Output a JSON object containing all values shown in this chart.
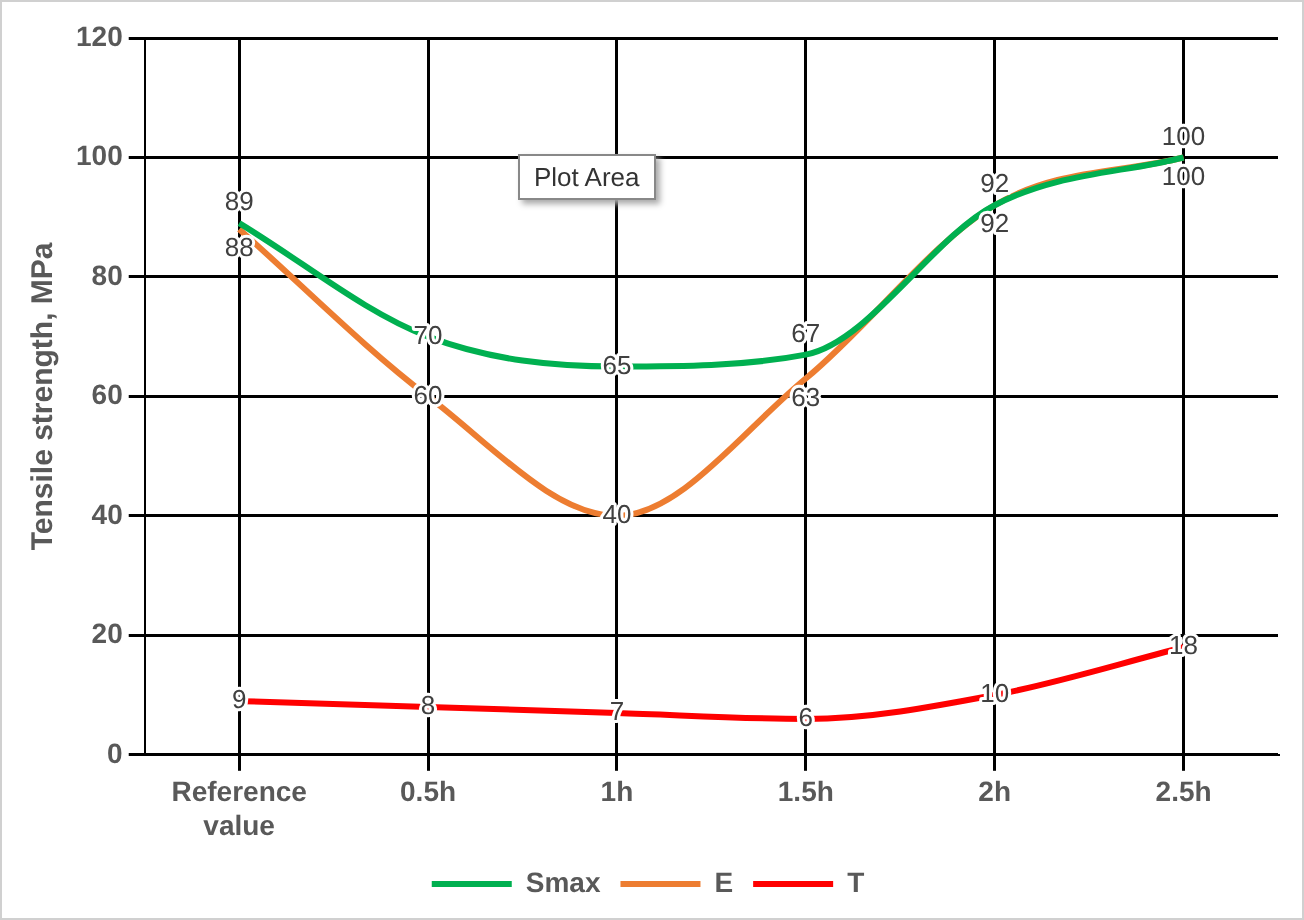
{
  "chart_data": {
    "type": "line",
    "ylabel": "Tensile strength, MPa",
    "categories": [
      "Reference value",
      "0.5h",
      "1h",
      "1.5h",
      "2h",
      "2.5h"
    ],
    "series": [
      {
        "name": "Smax",
        "color": "#00b050",
        "values": [
          89,
          70,
          65,
          67,
          92,
          100
        ]
      },
      {
        "name": "E",
        "color": "#ed7d31",
        "values": [
          88,
          60,
          40,
          63,
          92,
          100
        ]
      },
      {
        "name": "T",
        "color": "#ff0000",
        "values": [
          9,
          8,
          7,
          6,
          10,
          18
        ]
      }
    ],
    "ylim": [
      0,
      120
    ],
    "yticks": [
      0,
      20,
      40,
      60,
      80,
      100,
      120
    ],
    "grid": true,
    "legend": "bottom",
    "marker": "none",
    "line_style": "solid",
    "data_labels": true,
    "annotations": [
      "Plot Area"
    ]
  }
}
